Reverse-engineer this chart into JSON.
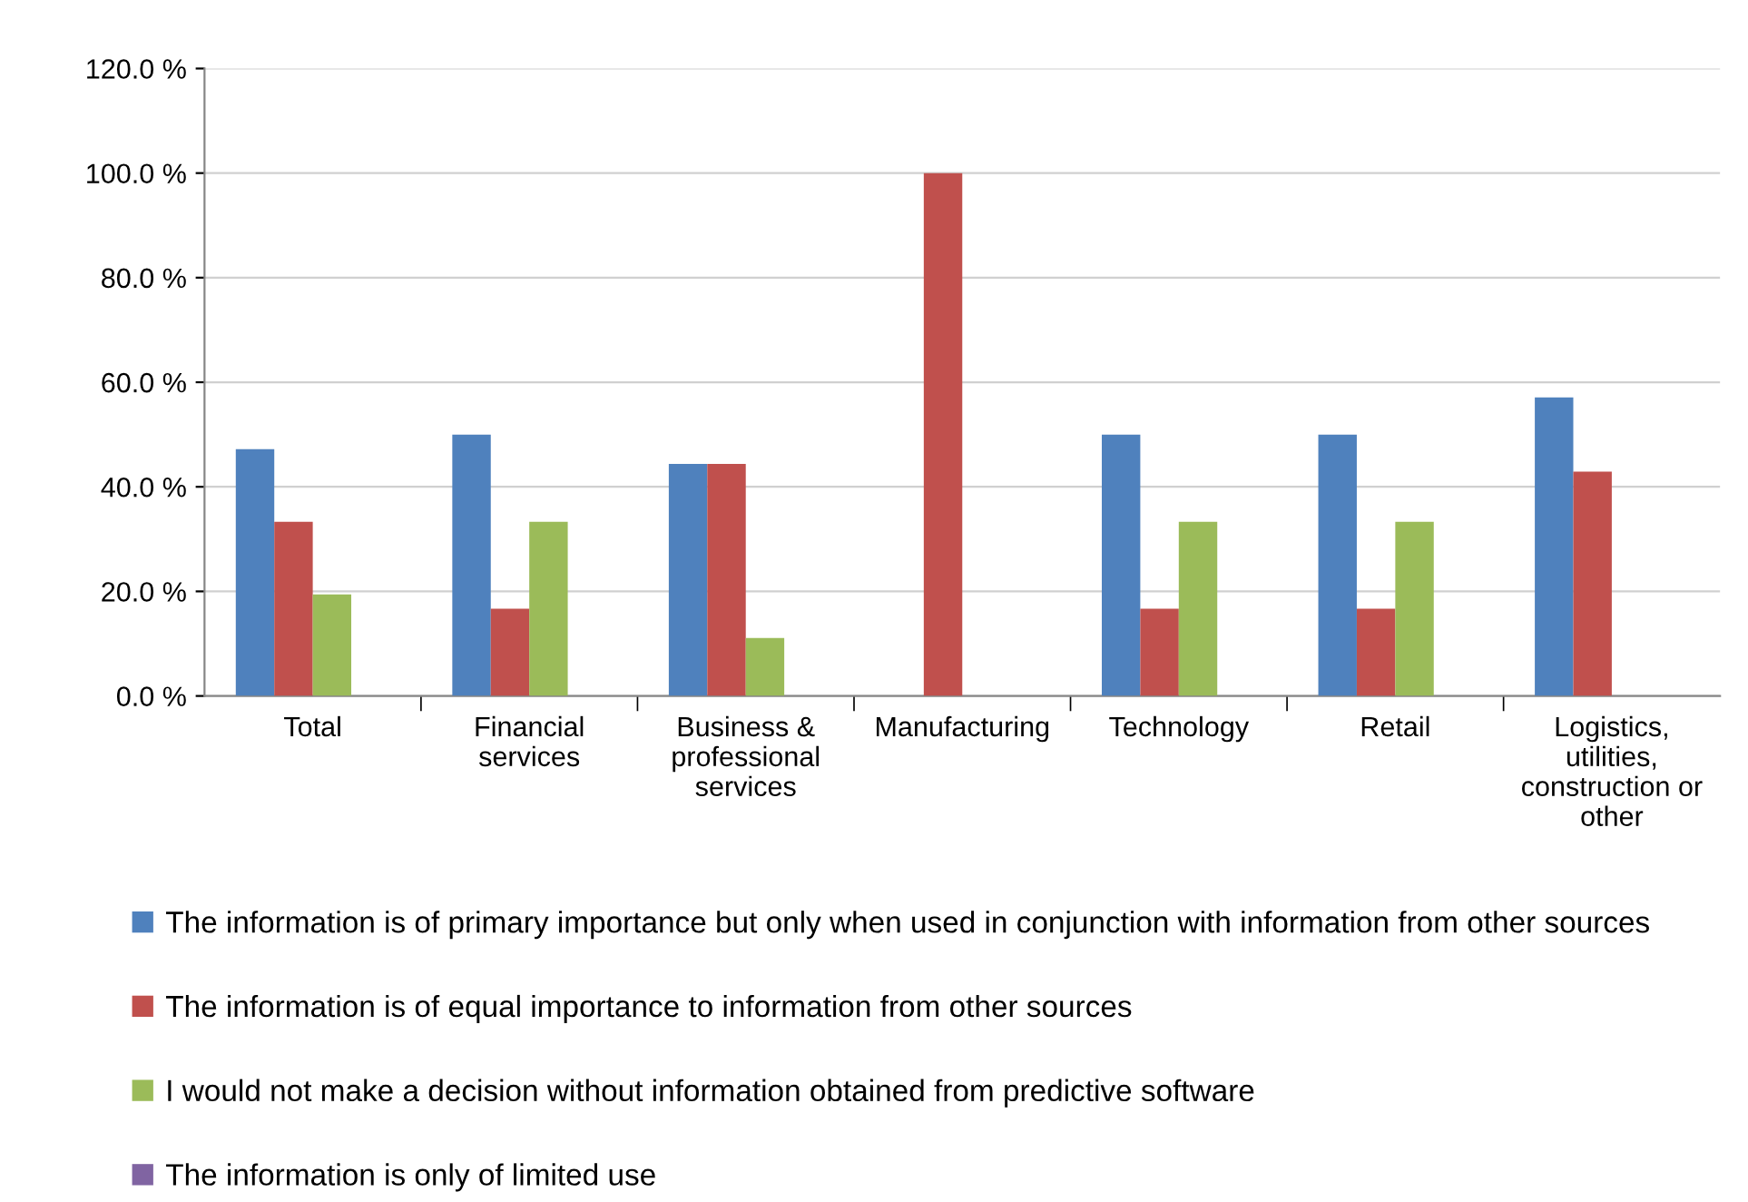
{
  "chart_data": {
    "type": "bar",
    "categories": [
      "Total",
      "Financial services",
      "Business & professional services",
      "Manufacturing",
      "Technology",
      "Retail",
      "Logistics, utilities, construction or other"
    ],
    "series": [
      {
        "name": "The information is of primary importance but only when used in conjunction with information from other sources",
        "color": "#4f81bd",
        "values": [
          47.2,
          50.0,
          44.4,
          0,
          50.0,
          50.0,
          57.1
        ]
      },
      {
        "name": "The information is of equal importance to information from other sources",
        "color": "#c0504d",
        "values": [
          33.3,
          16.7,
          44.4,
          100.0,
          16.7,
          16.7,
          42.9
        ]
      },
      {
        "name": "I would not make a decision without information obtained from predictive software",
        "color": "#9bbb59",
        "values": [
          19.4,
          33.3,
          11.1,
          0,
          33.3,
          33.3,
          0
        ]
      },
      {
        "name": "The information is only of limited use",
        "color": "#8064a2",
        "values": [
          0,
          0,
          0,
          0,
          0,
          0,
          0
        ]
      }
    ],
    "ylim": [
      0,
      120
    ],
    "yticks": [
      {
        "value": 0,
        "label": "0.0 %"
      },
      {
        "value": 20,
        "label": "20.0 %"
      },
      {
        "value": 40,
        "label": "40.0 %"
      },
      {
        "value": 60,
        "label": "60.0 %"
      },
      {
        "value": 80,
        "label": "80.0 %"
      },
      {
        "value": 100,
        "label": "100.0 %"
      },
      {
        "value": 120,
        "label": "120.0 %"
      }
    ],
    "grid": "y",
    "legend": "bottom"
  }
}
